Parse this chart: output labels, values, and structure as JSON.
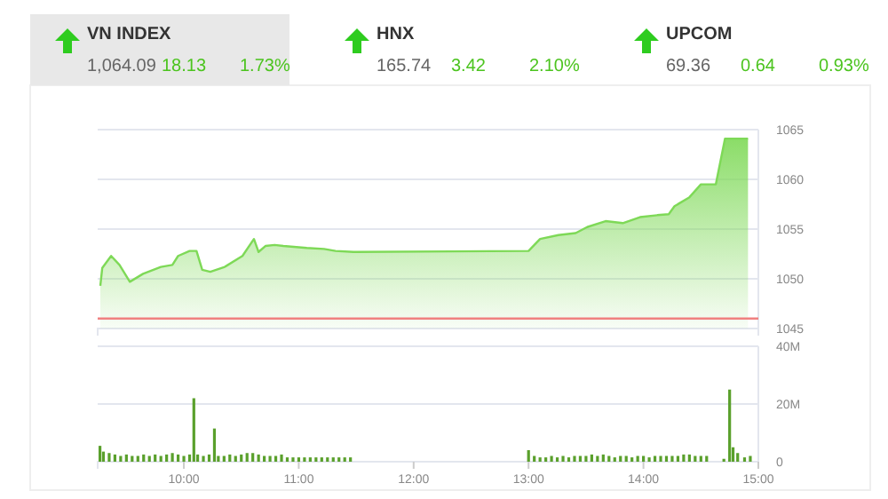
{
  "chart_data": [
    {
      "type": "other",
      "annotations": [
        "VN INDEX",
        "1,064.09",
        "18.13",
        "1.73%",
        "HNX",
        "165.74",
        "3.42",
        "2.10%",
        "UPCOM",
        "69.36",
        "0.64",
        "0.93%"
      ]
    },
    {
      "type": "area",
      "color": "#7ed957",
      "x": [
        9.273,
        9.29,
        9.367,
        9.44,
        9.53,
        9.645,
        9.8,
        9.9,
        9.95,
        10.05,
        10.11,
        10.16,
        10.23,
        10.356,
        10.51,
        10.61,
        10.65,
        10.71,
        10.79,
        10.866,
        11.07,
        11.22,
        11.32,
        11.476,
        11.5,
        13.0,
        13.1,
        13.26,
        13.41,
        13.51,
        13.67,
        13.82,
        13.97,
        14.12,
        14.22,
        14.27,
        14.4,
        14.5,
        14.63,
        14.71,
        14.91
      ],
      "values": [
        1049.3,
        1051.1,
        1052.3,
        1051.4,
        1049.7,
        1050.5,
        1051.2,
        1051.4,
        1052.3,
        1052.8,
        1052.8,
        1050.9,
        1050.7,
        1051.2,
        1052.3,
        1054.0,
        1052.7,
        1053.3,
        1053.4,
        1053.3,
        1053.1,
        1053.0,
        1052.8,
        1052.7,
        1052.7,
        1052.8,
        1054.0,
        1054.4,
        1054.6,
        1055.2,
        1055.8,
        1055.6,
        1056.2,
        1056.4,
        1056.5,
        1057.3,
        1058.2,
        1059.5,
        1059.5,
        1064.1,
        1064.1
      ],
      "xlim": [
        9.25,
        15
      ],
      "ylim": [
        1045,
        1065
      ],
      "yticks": [
        1045,
        1050,
        1055,
        1060,
        1065
      ],
      "grid": "y",
      "tick_labels": "y",
      "ref_lines": [
        {
          "axis": "y",
          "value": 1046,
          "color": "#f08080"
        }
      ]
    },
    {
      "type": "bar",
      "color": "#5aa02c",
      "x": [
        9.27,
        9.3,
        9.35,
        9.4,
        9.45,
        9.5,
        9.55,
        9.6,
        9.65,
        9.7,
        9.75,
        9.8,
        9.85,
        9.9,
        9.95,
        10.0,
        10.05,
        10.087,
        10.12,
        10.17,
        10.22,
        10.266,
        10.3,
        10.35,
        10.4,
        10.45,
        10.5,
        10.55,
        10.6,
        10.65,
        10.7,
        10.75,
        10.8,
        10.85,
        10.9,
        10.95,
        11.0,
        11.05,
        11.1,
        11.15,
        11.2,
        11.25,
        11.3,
        11.35,
        11.4,
        11.45,
        13.0,
        13.05,
        13.1,
        13.15,
        13.2,
        13.25,
        13.3,
        13.35,
        13.4,
        13.45,
        13.5,
        13.55,
        13.6,
        13.65,
        13.7,
        13.75,
        13.8,
        13.85,
        13.9,
        13.95,
        14.0,
        14.05,
        14.1,
        14.15,
        14.2,
        14.25,
        14.3,
        14.35,
        14.4,
        14.45,
        14.5,
        14.55,
        14.7,
        14.75,
        14.78,
        14.82,
        14.88,
        14.93
      ],
      "values": [
        5.5,
        3.5,
        3,
        2.5,
        2,
        2.5,
        2,
        2,
        2.5,
        2,
        2.5,
        2,
        2.5,
        3,
        2.5,
        2,
        2.5,
        22,
        2.5,
        2,
        2.5,
        11.5,
        2,
        2,
        2.5,
        2,
        2.5,
        3,
        3,
        2.5,
        2,
        2,
        2,
        2.5,
        1.5,
        1.5,
        1.5,
        1.5,
        1.5,
        1.5,
        1.5,
        1.5,
        1.5,
        1.5,
        1.5,
        1.5,
        4,
        2,
        1.5,
        1.5,
        2,
        1.5,
        2,
        1.5,
        2,
        2,
        2,
        2.5,
        2,
        2.5,
        2,
        1.5,
        2,
        2,
        1.5,
        2,
        2,
        1.5,
        2,
        2,
        2,
        2,
        2,
        2.5,
        2.5,
        2,
        2,
        2,
        1,
        25,
        5,
        3,
        1.5,
        2
      ],
      "xlim": [
        9.25,
        15
      ],
      "xticks": [
        {
          "value": 10,
          "label": "10:00"
        },
        {
          "value": 11,
          "label": "11:00"
        },
        {
          "value": 12,
          "label": "12:00"
        },
        {
          "value": 13,
          "label": "13:00"
        },
        {
          "value": 14,
          "label": "14:00"
        },
        {
          "value": 15,
          "label": "15:00"
        }
      ],
      "ylim": [
        0,
        40
      ],
      "yticks": [
        0,
        {
          "value": 20,
          "label": "20M"
        },
        {
          "value": 40,
          "label": "40M"
        }
      ],
      "grid": "y"
    }
  ]
}
